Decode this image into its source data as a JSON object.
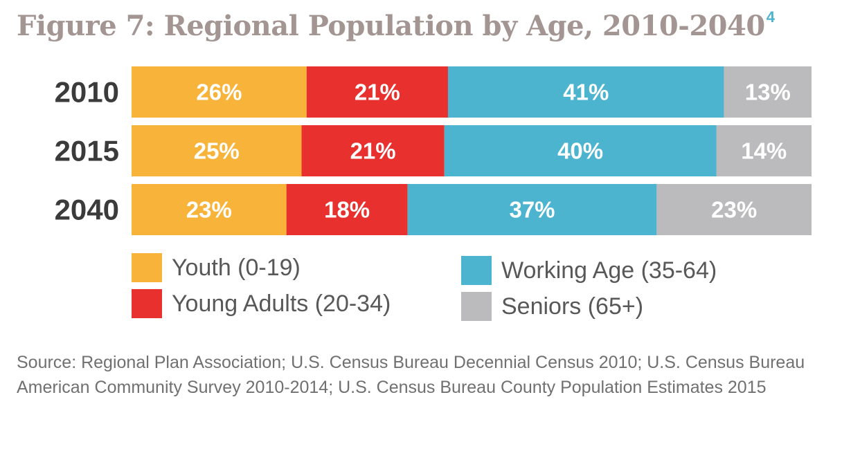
{
  "title": "Figure 7: Regional Population by Age, 2010-2040",
  "title_footnote": "4",
  "source": "Source: Regional Plan Association; U.S. Census Bureau Decennial Census 2010; U.S. Census Bureau American Community Survey 2010-2014; U.S. Census Bureau County Population Estimates 2015",
  "colors": {
    "youth": "#f8b43a",
    "young_adults": "#e8312e",
    "working_age": "#4db4cf",
    "seniors": "#bbbbbd"
  },
  "legend": {
    "youth": "Youth (0-19)",
    "young_adults": "Young Adults (20-34)",
    "working_age": "Working Age (35-64)",
    "seniors": "Seniors (65+)"
  },
  "chart_data": {
    "type": "bar",
    "orientation": "horizontal",
    "stacked": true,
    "categories": [
      "2010",
      "2015",
      "2040"
    ],
    "series": [
      {
        "name": "Youth (0-19)",
        "values": [
          26,
          25,
          23
        ],
        "labels": [
          "26%",
          "25%",
          "23%"
        ]
      },
      {
        "name": "Young Adults (20-34)",
        "values": [
          21,
          21,
          18
        ],
        "labels": [
          "21%",
          "21%",
          "18%"
        ]
      },
      {
        "name": "Working Age (35-64)",
        "values": [
          41,
          40,
          37
        ],
        "labels": [
          "41%",
          "40%",
          "37%"
        ]
      },
      {
        "name": "Seniors (65+)",
        "values": [
          13,
          14,
          23
        ],
        "labels": [
          "13%",
          "14%",
          "23%"
        ]
      }
    ],
    "legend_position": "bottom",
    "grid": false
  }
}
